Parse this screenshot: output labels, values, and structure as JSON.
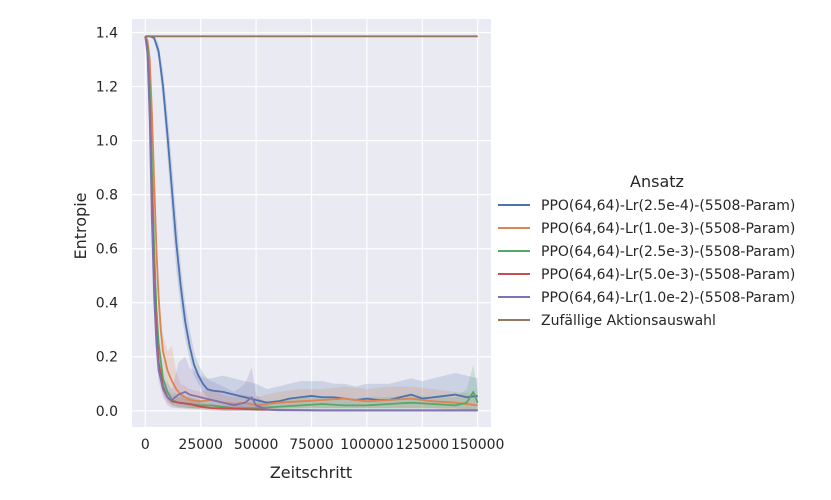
{
  "chart_data": {
    "type": "line",
    "xlabel": "Zeitschritt",
    "ylabel": "Entropie",
    "xlim": [
      -6000,
      156000
    ],
    "ylim": [
      -0.06,
      1.45
    ],
    "x_ticks": [
      0,
      25000,
      50000,
      75000,
      100000,
      125000,
      150000
    ],
    "x_tick_labels": [
      "0",
      "25000",
      "50000",
      "75000",
      "100000",
      "125000",
      "150000"
    ],
    "y_ticks": [
      0.0,
      0.2,
      0.4,
      0.6,
      0.8,
      1.0,
      1.2,
      1.4
    ],
    "y_tick_labels": [
      "0.0",
      "0.2",
      "0.4",
      "0.6",
      "0.8",
      "1.0",
      "1.2",
      "1.4"
    ],
    "grid": true,
    "legend": {
      "title": "Ansatz",
      "placement": "right"
    },
    "series": [
      {
        "name": "PPO(64,64)-Lr(2.5e-4)-(5508-Param)",
        "color": "#4c72b0",
        "x": [
          0,
          2000,
          4000,
          6000,
          8000,
          10000,
          12000,
          14000,
          16000,
          18000,
          20000,
          22000,
          24000,
          26000,
          28000,
          30000,
          35000,
          40000,
          45000,
          50000,
          55000,
          60000,
          65000,
          70000,
          75000,
          80000,
          85000,
          90000,
          95000,
          100000,
          105000,
          110000,
          115000,
          120000,
          125000,
          130000,
          135000,
          140000,
          145000,
          150000
        ],
        "values": [
          1.386,
          1.386,
          1.38,
          1.33,
          1.2,
          1.02,
          0.82,
          0.62,
          0.46,
          0.33,
          0.24,
          0.17,
          0.13,
          0.1,
          0.08,
          0.075,
          0.07,
          0.06,
          0.05,
          0.04,
          0.03,
          0.035,
          0.045,
          0.05,
          0.055,
          0.05,
          0.05,
          0.045,
          0.04,
          0.045,
          0.04,
          0.04,
          0.05,
          0.06,
          0.045,
          0.05,
          0.055,
          0.06,
          0.05,
          0.055
        ],
        "lower": [
          1.386,
          1.386,
          1.37,
          1.3,
          1.14,
          0.94,
          0.72,
          0.52,
          0.38,
          0.27,
          0.19,
          0.13,
          0.1,
          0.07,
          0.05,
          0.04,
          0.03,
          0.02,
          0.01,
          0.01,
          0.01,
          0.01,
          0.01,
          0.01,
          0.01,
          0.01,
          0.01,
          0.01,
          0.01,
          0.01,
          0.01,
          0.01,
          0.01,
          0.01,
          0.01,
          0.01,
          0.01,
          0.01,
          0.0,
          0.0
        ],
        "upper": [
          1.386,
          1.386,
          1.386,
          1.36,
          1.26,
          1.1,
          0.92,
          0.72,
          0.54,
          0.4,
          0.3,
          0.22,
          0.17,
          0.14,
          0.12,
          0.12,
          0.13,
          0.12,
          0.11,
          0.1,
          0.08,
          0.09,
          0.1,
          0.11,
          0.11,
          0.11,
          0.1,
          0.1,
          0.09,
          0.1,
          0.1,
          0.1,
          0.11,
          0.12,
          0.11,
          0.12,
          0.13,
          0.14,
          0.13,
          0.12
        ]
      },
      {
        "name": "PPO(64,64)-Lr(1.0e-3)-(5508-Param)",
        "color": "#dd8452",
        "x": [
          0,
          1000,
          2000,
          3000,
          4000,
          5000,
          6000,
          7000,
          8000,
          10000,
          12000,
          14000,
          16000,
          18000,
          20000,
          25000,
          30000,
          35000,
          40000,
          45000,
          50000,
          55000,
          60000,
          70000,
          80000,
          90000,
          100000,
          110000,
          120000,
          130000,
          140000,
          150000
        ],
        "values": [
          1.386,
          1.37,
          1.3,
          1.1,
          0.85,
          0.6,
          0.42,
          0.3,
          0.22,
          0.15,
          0.11,
          0.08,
          0.06,
          0.05,
          0.04,
          0.035,
          0.04,
          0.03,
          0.025,
          0.03,
          0.02,
          0.025,
          0.03,
          0.035,
          0.04,
          0.045,
          0.035,
          0.04,
          0.045,
          0.035,
          0.03,
          0.02
        ],
        "lower": [
          1.386,
          1.36,
          1.26,
          1.04,
          0.78,
          0.53,
          0.35,
          0.24,
          0.17,
          0.1,
          0.07,
          0.04,
          0.03,
          0.02,
          0.01,
          0.01,
          0.01,
          0.01,
          0.005,
          0.005,
          0.005,
          0.005,
          0.01,
          0.01,
          0.01,
          0.01,
          0.01,
          0.01,
          0.01,
          0.01,
          0.0,
          0.0
        ],
        "upper": [
          1.386,
          1.386,
          1.34,
          1.16,
          0.92,
          0.67,
          0.49,
          0.36,
          0.28,
          0.22,
          0.24,
          0.14,
          0.1,
          0.09,
          0.08,
          0.07,
          0.08,
          0.06,
          0.05,
          0.06,
          0.05,
          0.06,
          0.07,
          0.08,
          0.08,
          0.09,
          0.08,
          0.09,
          0.09,
          0.08,
          0.07,
          0.06
        ]
      },
      {
        "name": "PPO(64,64)-Lr(2.5e-3)-(5508-Param)",
        "color": "#55a868",
        "x": [
          0,
          1000,
          2000,
          3000,
          4000,
          5000,
          6000,
          8000,
          10000,
          12000,
          15000,
          20000,
          25000,
          30000,
          35000,
          40000,
          50000,
          60000,
          70000,
          80000,
          90000,
          100000,
          110000,
          120000,
          130000,
          140000,
          145000,
          148000,
          150000
        ],
        "values": [
          1.386,
          1.35,
          1.2,
          0.9,
          0.6,
          0.38,
          0.25,
          0.12,
          0.07,
          0.04,
          0.03,
          0.025,
          0.02,
          0.02,
          0.015,
          0.01,
          0.01,
          0.015,
          0.02,
          0.025,
          0.02,
          0.02,
          0.025,
          0.03,
          0.025,
          0.02,
          0.03,
          0.07,
          0.03
        ],
        "lower": [
          1.386,
          1.33,
          1.15,
          0.84,
          0.53,
          0.32,
          0.2,
          0.08,
          0.04,
          0.02,
          0.01,
          0.005,
          0.005,
          0.005,
          0.0,
          0.0,
          0.0,
          0.0,
          0.0,
          0.0,
          0.0,
          0.0,
          0.0,
          0.0,
          0.0,
          0.0,
          0.0,
          0.0,
          0.0
        ],
        "upper": [
          1.386,
          1.37,
          1.25,
          0.96,
          0.67,
          0.44,
          0.3,
          0.16,
          0.11,
          0.07,
          0.06,
          0.05,
          0.04,
          0.04,
          0.03,
          0.03,
          0.03,
          0.04,
          0.05,
          0.05,
          0.04,
          0.05,
          0.05,
          0.06,
          0.05,
          0.05,
          0.08,
          0.17,
          0.07
        ]
      },
      {
        "name": "PPO(64,64)-Lr(5.0e-3)-(5508-Param)",
        "color": "#c44e52",
        "x": [
          0,
          1000,
          2000,
          3000,
          4000,
          5000,
          6000,
          8000,
          10000,
          12000,
          15000,
          20000,
          25000,
          30000,
          40000,
          50000,
          60000,
          80000,
          100000,
          120000,
          150000
        ],
        "values": [
          1.386,
          1.33,
          1.12,
          0.78,
          0.48,
          0.3,
          0.18,
          0.09,
          0.05,
          0.035,
          0.03,
          0.025,
          0.015,
          0.01,
          0.008,
          0.005,
          0.003,
          0.002,
          0.002,
          0.002,
          0.002
        ],
        "lower": [
          1.386,
          1.31,
          1.07,
          0.72,
          0.42,
          0.25,
          0.14,
          0.06,
          0.03,
          0.02,
          0.015,
          0.01,
          0.005,
          0.0,
          0.0,
          0.0,
          0.0,
          0.0,
          0.0,
          0.0,
          0.0
        ],
        "upper": [
          1.386,
          1.35,
          1.17,
          0.84,
          0.54,
          0.35,
          0.22,
          0.12,
          0.08,
          0.06,
          0.05,
          0.05,
          0.03,
          0.02,
          0.02,
          0.01,
          0.008,
          0.005,
          0.005,
          0.005,
          0.005
        ]
      },
      {
        "name": "PPO(64,64)-Lr(1.0e-2)-(5508-Param)",
        "color": "#8172b3",
        "x": [
          0,
          1000,
          2000,
          3000,
          4000,
          5000,
          6000,
          8000,
          10000,
          12000,
          15000,
          18000,
          20000,
          25000,
          30000,
          35000,
          40000,
          45000,
          48000,
          50000,
          55000,
          60000,
          80000,
          100000,
          120000,
          150000
        ],
        "values": [
          1.386,
          1.32,
          1.08,
          0.7,
          0.42,
          0.25,
          0.15,
          0.08,
          0.05,
          0.04,
          0.06,
          0.07,
          0.06,
          0.05,
          0.04,
          0.03,
          0.02,
          0.03,
          0.05,
          0.02,
          0.005,
          0.002,
          0.001,
          0.001,
          0.001,
          0.001
        ],
        "lower": [
          1.386,
          1.3,
          1.03,
          0.64,
          0.36,
          0.2,
          0.11,
          0.05,
          0.02,
          0.01,
          0.01,
          0.01,
          0.01,
          0.01,
          0.01,
          0.0,
          0.0,
          0.0,
          0.0,
          0.0,
          0.0,
          0.0,
          0.0,
          0.0,
          0.0,
          0.0
        ],
        "upper": [
          1.386,
          1.34,
          1.13,
          0.76,
          0.48,
          0.3,
          0.2,
          0.12,
          0.1,
          0.08,
          0.18,
          0.2,
          0.16,
          0.13,
          0.11,
          0.09,
          0.07,
          0.1,
          0.16,
          0.06,
          0.02,
          0.01,
          0.005,
          0.005,
          0.005,
          0.005
        ]
      },
      {
        "name": "Zufällige Aktionsauswahl",
        "color": "#937860",
        "x": [
          0,
          150000
        ],
        "values": [
          1.386,
          1.386
        ]
      }
    ]
  }
}
